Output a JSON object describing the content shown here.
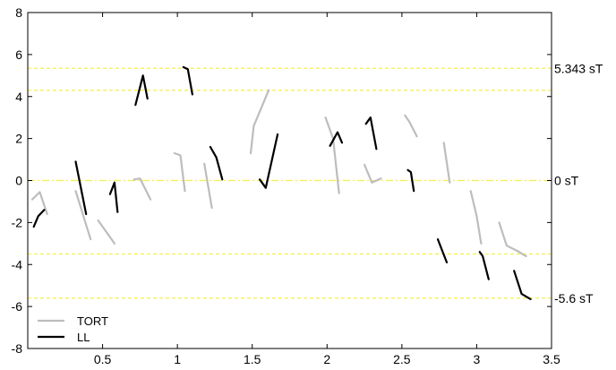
{
  "chart_data": {
    "type": "line",
    "xlim": [
      0,
      3.5
    ],
    "ylim": [
      -8,
      8
    ],
    "x_ticks": [
      0.5,
      1,
      1.5,
      2,
      2.5,
      3,
      3.5
    ],
    "x_tick_labels": [
      "0.5",
      "1",
      "1.5",
      "2",
      "2.5",
      "3",
      "3.5"
    ],
    "y_ticks": [
      -8,
      -6,
      -4,
      -2,
      0,
      2,
      4,
      6,
      8
    ],
    "y_tick_labels": [
      "-8",
      "-6",
      "-4",
      "-2",
      "0",
      "2",
      "4",
      "6",
      "8"
    ],
    "grid": false,
    "legend": {
      "position": "bottom-left",
      "entries": [
        "TORT",
        "LL"
      ]
    },
    "reference_lines": [
      {
        "y": 5.343,
        "label": "5.343 sT",
        "style": "dashed",
        "color": "#f5f04a"
      },
      {
        "y": 4.3,
        "label": "",
        "style": "dashed",
        "color": "#f5f04a"
      },
      {
        "y": 0,
        "label": "0 sT",
        "style": "dashdot",
        "color": "#f5f04a"
      },
      {
        "y": -3.5,
        "label": "",
        "style": "dashed",
        "color": "#f5f04a"
      },
      {
        "y": -5.6,
        "label": "-5.6 sT",
        "style": "dashed",
        "color": "#f5f04a"
      }
    ],
    "series": [
      {
        "name": "TORT",
        "color": "#bdbdbd",
        "segments": [
          [
            [
              0.03,
              -0.9
            ],
            [
              0.08,
              -0.55
            ],
            [
              0.13,
              -1.6
            ]
          ],
          [
            [
              0.32,
              -0.5
            ],
            [
              0.42,
              -2.8
            ]
          ],
          [
            [
              0.47,
              -1.9
            ],
            [
              0.58,
              -3.0
            ]
          ],
          [
            [
              0.71,
              0.05
            ],
            [
              0.75,
              0.1
            ],
            [
              0.82,
              -0.9
            ]
          ],
          [
            [
              0.98,
              1.3
            ],
            [
              1.02,
              1.2
            ],
            [
              1.05,
              -0.5
            ]
          ],
          [
            [
              1.18,
              0.8
            ],
            [
              1.23,
              -1.3
            ]
          ],
          [
            [
              1.49,
              1.3
            ],
            [
              1.51,
              2.6
            ],
            [
              1.61,
              4.3
            ]
          ],
          [
            [
              1.99,
              3.0
            ],
            [
              2.04,
              2.0
            ],
            [
              2.08,
              -0.6
            ]
          ],
          [
            [
              2.25,
              0.75
            ],
            [
              2.3,
              -0.1
            ],
            [
              2.36,
              0.1
            ]
          ],
          [
            [
              2.52,
              3.1
            ],
            [
              2.55,
              2.8
            ],
            [
              2.6,
              2.1
            ]
          ],
          [
            [
              2.78,
              1.8
            ],
            [
              2.82,
              -0.1
            ]
          ],
          [
            [
              2.96,
              -0.5
            ],
            [
              3.0,
              -1.7
            ],
            [
              3.03,
              -3.0
            ]
          ],
          [
            [
              3.15,
              -2.0
            ],
            [
              3.2,
              -3.1
            ],
            [
              3.27,
              -3.35
            ],
            [
              3.33,
              -3.6
            ]
          ]
        ]
      },
      {
        "name": "LL",
        "color": "#000000",
        "segments": [
          [
            [
              0.04,
              -2.2
            ],
            [
              0.07,
              -1.7
            ],
            [
              0.11,
              -1.4
            ]
          ],
          [
            [
              0.32,
              0.9
            ],
            [
              0.39,
              -1.6
            ]
          ],
          [
            [
              0.55,
              -0.65
            ],
            [
              0.58,
              -0.1
            ],
            [
              0.6,
              -1.5
            ]
          ],
          [
            [
              0.72,
              3.6
            ],
            [
              0.77,
              5.0
            ],
            [
              0.8,
              3.9
            ]
          ],
          [
            [
              1.04,
              5.4
            ],
            [
              1.07,
              5.3
            ],
            [
              1.1,
              4.1
            ]
          ],
          [
            [
              1.22,
              1.6
            ],
            [
              1.26,
              1.1
            ],
            [
              1.3,
              0.05
            ]
          ],
          [
            [
              1.55,
              0.05
            ],
            [
              1.59,
              -0.35
            ],
            [
              1.67,
              2.2
            ]
          ],
          [
            [
              2.02,
              1.65
            ],
            [
              2.07,
              2.3
            ],
            [
              2.1,
              1.8
            ]
          ],
          [
            [
              2.26,
              2.7
            ],
            [
              2.29,
              3.0
            ],
            [
              2.33,
              1.5
            ]
          ],
          [
            [
              2.54,
              0.5
            ],
            [
              2.56,
              0.4
            ],
            [
              2.58,
              -0.5
            ]
          ],
          [
            [
              2.74,
              -2.8
            ],
            [
              2.8,
              -3.9
            ]
          ],
          [
            [
              3.02,
              -3.4
            ],
            [
              3.04,
              -3.6
            ],
            [
              3.08,
              -4.7
            ]
          ],
          [
            [
              3.25,
              -4.3
            ],
            [
              3.3,
              -5.4
            ],
            [
              3.36,
              -5.65
            ]
          ]
        ]
      }
    ]
  }
}
